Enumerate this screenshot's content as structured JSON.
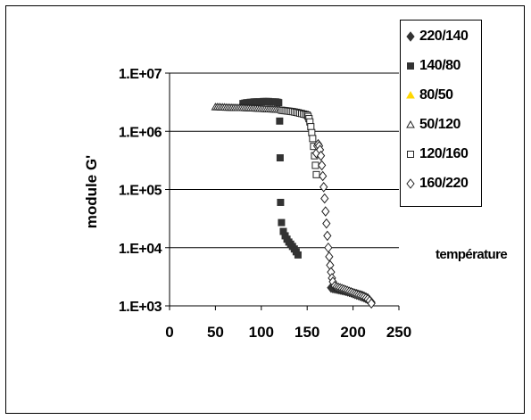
{
  "chart_data": {
    "type": "scatter",
    "title": "",
    "xlabel": "température",
    "ylabel": "module G'",
    "x_ticks": [
      "0",
      "50",
      "100",
      "150",
      "200",
      "250"
    ],
    "y_ticks": [
      "1.E+03",
      "1.E+04",
      "1.E+05",
      "1.E+06",
      "1.E+07"
    ],
    "xlim": [
      0,
      250
    ],
    "ylim": [
      1000,
      10000000
    ],
    "yscale": "log",
    "grid": "horizontal",
    "legend_position": "right",
    "series": [
      {
        "name": "220/140",
        "marker": "diamond-filled",
        "color": "#333333",
        "x": [
          220,
          218,
          216,
          214,
          212,
          210,
          208,
          206,
          204,
          202,
          200,
          198,
          196,
          194,
          192,
          190,
          188,
          186,
          184,
          182,
          180,
          178,
          176
        ],
        "y": [
          1150,
          1250,
          1350,
          1400,
          1450,
          1500,
          1530,
          1560,
          1600,
          1630,
          1660,
          1700,
          1730,
          1760,
          1800,
          1830,
          1860,
          1890,
          1920,
          1950,
          1980,
          2000,
          2050
        ]
      },
      {
        "name": "140/80",
        "marker": "square-filled",
        "color": "#333333",
        "x": [
          140,
          138,
          136,
          134,
          132,
          130,
          128,
          126,
          124,
          122,
          121,
          120.5,
          120,
          119,
          118,
          116,
          114,
          112,
          110,
          108,
          106,
          104,
          102,
          100,
          98,
          96,
          94,
          92,
          90,
          88,
          86,
          84,
          82,
          80
        ],
        "y": [
          7500,
          8500,
          9500,
          10500,
          11500,
          12500,
          14000,
          16000,
          19000,
          27000,
          60000,
          350000,
          1500000,
          3100000,
          3150000,
          3200000,
          3200000,
          3200000,
          3200000,
          3250000,
          3250000,
          3250000,
          3250000,
          3200000,
          3200000,
          3200000,
          3200000,
          3200000,
          3150000,
          3150000,
          3100000,
          3100000,
          3050000,
          3000000
        ]
      },
      {
        "name": "80/50",
        "marker": "triangle-filled",
        "color": "#ffd700",
        "x": [],
        "y": []
      },
      {
        "name": "50/120",
        "marker": "triangle-open",
        "color": "#333333",
        "x": [
          50,
          52,
          54,
          56,
          58,
          60,
          62,
          64,
          66,
          68,
          70,
          72,
          74,
          76,
          78,
          80,
          82,
          84,
          86,
          88,
          90,
          92,
          94,
          96,
          98,
          100,
          102,
          104,
          106,
          108,
          110,
          112,
          114,
          116,
          118,
          120
        ],
        "y": [
          2600000,
          2600000,
          2600000,
          2580000,
          2580000,
          2580000,
          2560000,
          2560000,
          2550000,
          2550000,
          2540000,
          2540000,
          2530000,
          2530000,
          2520000,
          2520000,
          2510000,
          2500000,
          2500000,
          2490000,
          2480000,
          2480000,
          2470000,
          2460000,
          2450000,
          2440000,
          2430000,
          2420000,
          2410000,
          2400000,
          2390000,
          2380000,
          2370000,
          2360000,
          2350000,
          2340000
        ]
      },
      {
        "name": "120/160",
        "marker": "square-open",
        "color": "#333333",
        "x": [
          122,
          124,
          126,
          128,
          130,
          132,
          134,
          136,
          138,
          140,
          142,
          144,
          146,
          148,
          150,
          151,
          152,
          153,
          154,
          155,
          156,
          157,
          158,
          159,
          160
        ],
        "y": [
          2300000,
          2280000,
          2260000,
          2240000,
          2220000,
          2200000,
          2180000,
          2150000,
          2120000,
          2090000,
          2050000,
          2020000,
          1980000,
          1950000,
          1900000,
          1800000,
          1650000,
          1450000,
          1200000,
          950000,
          750000,
          550000,
          380000,
          260000,
          180000
        ]
      },
      {
        "name": "160/220",
        "marker": "diamond-open",
        "color": "#333333",
        "x": [
          160,
          161,
          162,
          163,
          164,
          165,
          166,
          167,
          168,
          169,
          170,
          171,
          172,
          173,
          174,
          175,
          176,
          177,
          178,
          180,
          182,
          184,
          186,
          188,
          190,
          192,
          194,
          196,
          198,
          200,
          202,
          204,
          206,
          208,
          210,
          212,
          214,
          216,
          218,
          220
        ],
        "y": [
          420000,
          560000,
          600000,
          560000,
          480000,
          380000,
          260000,
          170000,
          110000,
          70000,
          42000,
          26000,
          16000,
          10000,
          7000,
          5000,
          3800,
          3000,
          2600,
          2200,
          2100,
          2050,
          2000,
          1950,
          1900,
          1850,
          1800,
          1750,
          1700,
          1650,
          1600,
          1560,
          1520,
          1480,
          1440,
          1400,
          1350,
          1300,
          1220,
          1100
        ]
      }
    ]
  }
}
